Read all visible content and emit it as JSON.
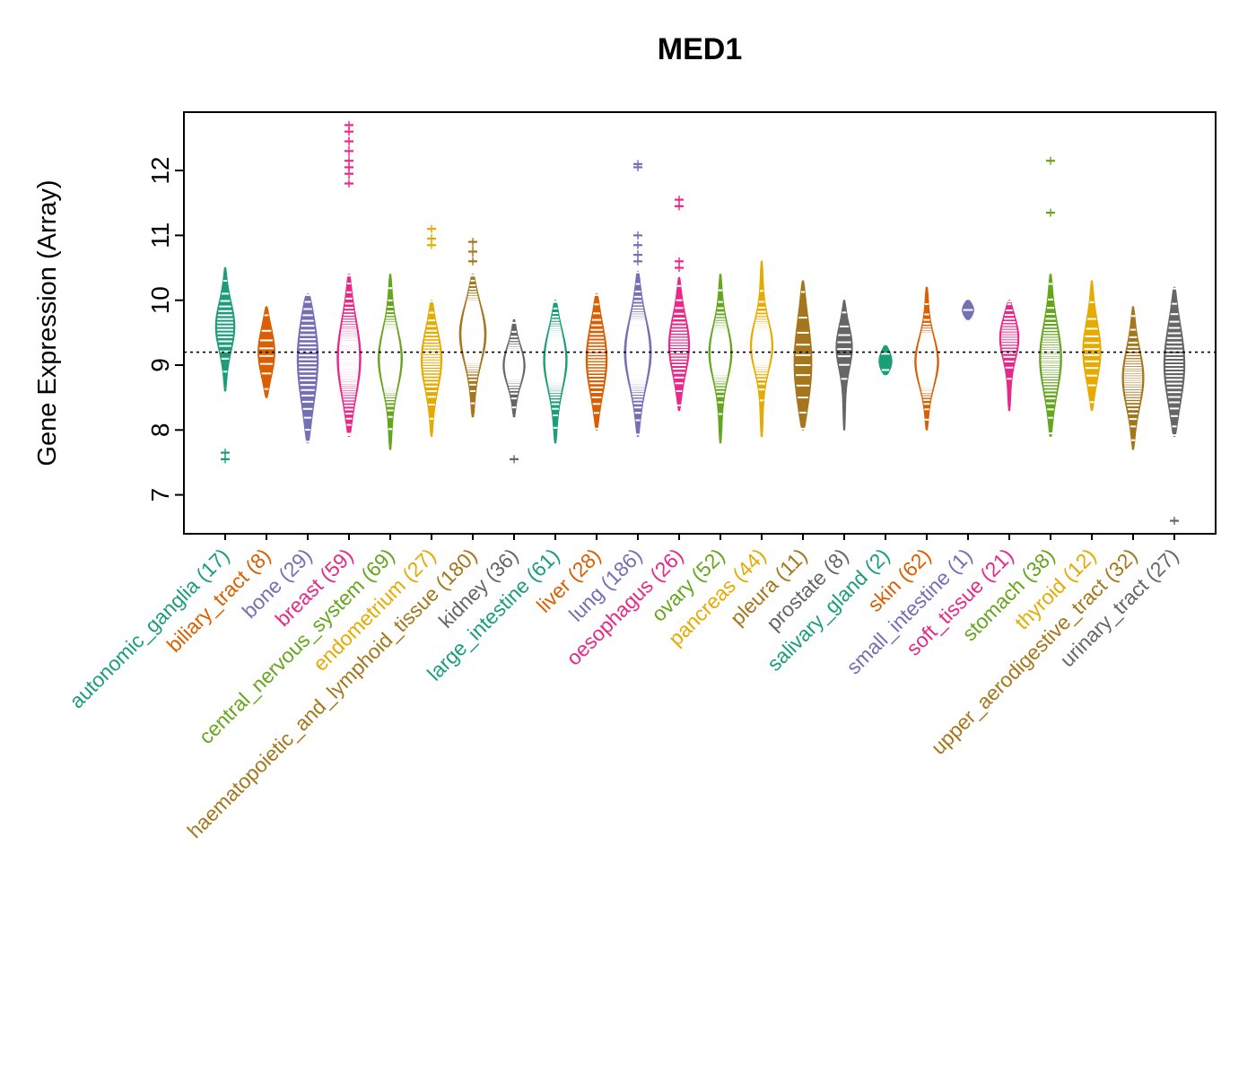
{
  "title": "MED1",
  "ylabel": "Gene Expression (Array)",
  "chart_data": {
    "type": "violin",
    "title": "MED1",
    "ylabel": "Gene Expression (Array)",
    "xlabel": "",
    "ylim": [
      6.4,
      12.9
    ],
    "yticks": [
      7,
      8,
      9,
      10,
      11,
      12
    ],
    "reference_line": 9.2,
    "grid": false,
    "legend": "none",
    "palette": [
      "#1B9E77",
      "#D95F02",
      "#7570B3",
      "#E7298A",
      "#66A61E",
      "#E6AB02",
      "#A6761D",
      "#666666"
    ],
    "series": [
      {
        "name": "autonomic_ganglia",
        "n": 17,
        "label": "autonomic_ganglia (17)",
        "color": "#1B9E77",
        "min": 8.6,
        "q1": 9.3,
        "median": 9.6,
        "q3": 9.8,
        "max": 10.5,
        "outliers": [
          7.55,
          7.65
        ]
      },
      {
        "name": "biliary_tract",
        "n": 8,
        "label": "biliary_tract (8)",
        "color": "#D95F02",
        "min": 8.5,
        "q1": 8.95,
        "median": 9.2,
        "q3": 9.45,
        "max": 9.9,
        "outliers": []
      },
      {
        "name": "bone",
        "n": 29,
        "label": "bone (29)",
        "color": "#7570B3",
        "min": 7.8,
        "q1": 8.55,
        "median": 9.15,
        "q3": 9.5,
        "max": 10.1,
        "outliers": []
      },
      {
        "name": "breast",
        "n": 59,
        "label": "breast (59)",
        "color": "#E7298A",
        "min": 7.9,
        "q1": 8.7,
        "median": 9.1,
        "q3": 9.5,
        "max": 10.4,
        "outliers": [
          11.8,
          11.95,
          12.05,
          12.15,
          12.3,
          12.45,
          12.6,
          12.7
        ]
      },
      {
        "name": "central_nervous_system",
        "n": 69,
        "label": "central_nervous_system (69)",
        "color": "#66A61E",
        "min": 7.7,
        "q1": 8.8,
        "median": 9.1,
        "q3": 9.4,
        "max": 10.4,
        "outliers": []
      },
      {
        "name": "endometrium",
        "n": 27,
        "label": "endometrium (27)",
        "color": "#E6AB02",
        "min": 7.9,
        "q1": 8.8,
        "median": 9.1,
        "q3": 9.4,
        "max": 10.0,
        "outliers": [
          10.85,
          10.95,
          11.1
        ]
      },
      {
        "name": "haematopoietic_and_lymphoid_tissue",
        "n": 180,
        "label": "haematopoietic_and_lymphoid_tissue (180)",
        "color": "#A6761D",
        "min": 8.2,
        "q1": 9.2,
        "median": 9.5,
        "q3": 9.8,
        "max": 10.4,
        "outliers": [
          10.6,
          10.75,
          10.9
        ]
      },
      {
        "name": "kidney",
        "n": 36,
        "label": "kidney (36)",
        "color": "#666666",
        "min": 8.2,
        "q1": 8.8,
        "median": 9.0,
        "q3": 9.2,
        "max": 9.7,
        "outliers": [
          7.55
        ]
      },
      {
        "name": "large_intestine",
        "n": 61,
        "label": "large_intestine (61)",
        "color": "#1B9E77",
        "min": 7.8,
        "q1": 8.8,
        "median": 9.1,
        "q3": 9.4,
        "max": 10.0,
        "outliers": []
      },
      {
        "name": "liver",
        "n": 28,
        "label": "liver (28)",
        "color": "#D95F02",
        "min": 8.0,
        "q1": 8.7,
        "median": 9.1,
        "q3": 9.4,
        "max": 10.1,
        "outliers": []
      },
      {
        "name": "lung",
        "n": 186,
        "label": "lung (186)",
        "color": "#7570B3",
        "min": 7.9,
        "q1": 8.9,
        "median": 9.2,
        "q3": 9.6,
        "max": 10.45,
        "outliers": [
          10.6,
          10.7,
          10.85,
          11.0,
          12.05,
          12.1
        ]
      },
      {
        "name": "oesophagus",
        "n": 26,
        "label": "oesophagus (26)",
        "color": "#E7298A",
        "min": 8.3,
        "q1": 9.0,
        "median": 9.3,
        "q3": 9.6,
        "max": 10.35,
        "outliers": [
          10.5,
          10.6,
          11.45,
          11.55
        ]
      },
      {
        "name": "ovary",
        "n": 52,
        "label": "ovary (52)",
        "color": "#66A61E",
        "min": 7.8,
        "q1": 8.9,
        "median": 9.2,
        "q3": 9.45,
        "max": 10.4,
        "outliers": []
      },
      {
        "name": "pancreas",
        "n": 44,
        "label": "pancreas (44)",
        "color": "#E6AB02",
        "min": 7.9,
        "q1": 9.0,
        "median": 9.3,
        "q3": 9.5,
        "max": 10.6,
        "outliers": []
      },
      {
        "name": "pleura",
        "n": 11,
        "label": "pleura (11)",
        "color": "#A6761D",
        "min": 8.0,
        "q1": 8.5,
        "median": 9.0,
        "q3": 9.4,
        "max": 10.3,
        "outliers": []
      },
      {
        "name": "prostate",
        "n": 8,
        "label": "prostate (8)",
        "color": "#666666",
        "min": 8.0,
        "q1": 9.05,
        "median": 9.3,
        "q3": 9.5,
        "max": 10.0,
        "outliers": []
      },
      {
        "name": "salivary_gland",
        "n": 2,
        "label": "salivary_gland (2)",
        "color": "#1B9E77",
        "min": 8.85,
        "q1": 8.95,
        "median": 9.05,
        "q3": 9.2,
        "max": 9.3,
        "outliers": []
      },
      {
        "name": "skin",
        "n": 62,
        "label": "skin (62)",
        "color": "#D95F02",
        "min": 8.0,
        "q1": 8.8,
        "median": 9.05,
        "q3": 9.3,
        "max": 10.2,
        "outliers": []
      },
      {
        "name": "small_intestine",
        "n": 1,
        "label": "small_intestine (1)",
        "color": "#7570B3",
        "min": 9.7,
        "q1": 9.8,
        "median": 9.85,
        "q3": 9.95,
        "max": 10.0,
        "outliers": []
      },
      {
        "name": "soft_tissue",
        "n": 21,
        "label": "soft_tissue (21)",
        "color": "#E7298A",
        "min": 8.3,
        "q1": 9.2,
        "median": 9.45,
        "q3": 9.65,
        "max": 10.0,
        "outliers": []
      },
      {
        "name": "stomach",
        "n": 38,
        "label": "stomach (38)",
        "color": "#66A61E",
        "min": 7.9,
        "q1": 8.8,
        "median": 9.1,
        "q3": 9.5,
        "max": 10.4,
        "outliers": [
          11.35,
          12.15
        ]
      },
      {
        "name": "thyroid",
        "n": 12,
        "label": "thyroid (12)",
        "color": "#E6AB02",
        "min": 8.3,
        "q1": 8.9,
        "median": 9.2,
        "q3": 9.5,
        "max": 10.3,
        "outliers": []
      },
      {
        "name": "upper_aerodigestive_tract",
        "n": 32,
        "label": "upper_aerodigestive_tract (32)",
        "color": "#A6761D",
        "min": 7.7,
        "q1": 8.5,
        "median": 8.8,
        "q3": 9.1,
        "max": 9.9,
        "outliers": []
      },
      {
        "name": "urinary_tract",
        "n": 27,
        "label": "urinary_tract (27)",
        "color": "#666666",
        "min": 7.9,
        "q1": 8.6,
        "median": 9.0,
        "q3": 9.4,
        "max": 10.2,
        "outliers": [
          6.6
        ]
      }
    ]
  }
}
